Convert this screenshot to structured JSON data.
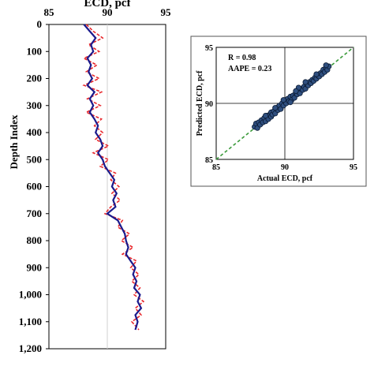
{
  "chart_data": [
    {
      "type": "line",
      "title": "ECD, pcf",
      "xlabel": "ECD, pcf",
      "ylabel": "Depth Index",
      "xlim": [
        85,
        95
      ],
      "ylim": [
        0,
        1200
      ],
      "y_inverted": true,
      "x_axis_position": "top",
      "x_ticks": [
        "85",
        "90",
        "95"
      ],
      "y_ticks": [
        "0",
        "100",
        "200",
        "300",
        "400",
        "500",
        "600",
        "700",
        "800",
        "900",
        "1,000",
        "1,100",
        "1,200"
      ],
      "y_tick_values": [
        0,
        100,
        200,
        300,
        400,
        500,
        600,
        700,
        800,
        900,
        1000,
        1100,
        1200
      ],
      "grid": "vertical-only",
      "legend": "none",
      "depth": [
        0,
        25,
        50,
        75,
        100,
        125,
        150,
        175,
        200,
        225,
        250,
        275,
        300,
        325,
        350,
        375,
        400,
        425,
        450,
        475,
        500,
        525,
        550,
        575,
        600,
        625,
        650,
        675,
        700,
        725,
        750,
        775,
        800,
        825,
        850,
        875,
        900,
        925,
        950,
        975,
        1000,
        1025,
        1050,
        1075,
        1100,
        1130
      ],
      "series": [
        {
          "values": [
            88.0,
            88.5,
            89.0,
            88.6,
            88.8,
            88.3,
            88.6,
            88.4,
            88.7,
            88.3,
            88.9,
            88.5,
            88.8,
            88.5,
            88.9,
            89.2,
            89.0,
            89.4,
            89.6,
            89.2,
            89.6,
            89.8,
            90.2,
            90.6,
            90.4,
            90.8,
            90.5,
            90.7,
            90.0,
            90.9,
            91.2,
            91.5,
            91.6,
            91.8,
            91.6,
            92.0,
            92.4,
            92.2,
            92.5,
            92.3,
            92.8,
            92.6,
            92.9,
            92.4,
            92.6,
            92.4
          ],
          "color": "#1a1a8c",
          "style": "solid"
        },
        {
          "values": [
            88.2,
            88.8,
            89.6,
            88.4,
            89.3,
            88.0,
            89.1,
            88.2,
            89.3,
            88.0,
            89.5,
            88.3,
            89.4,
            88.2,
            89.5,
            88.9,
            89.6,
            89.0,
            90.1,
            88.8,
            90.1,
            89.4,
            90.7,
            90.3,
            91.0,
            90.4,
            91.1,
            90.3,
            89.8,
            91.3,
            90.9,
            91.9,
            91.2,
            92.2,
            91.3,
            92.5,
            92.0,
            92.7,
            92.1,
            92.8,
            92.3,
            93.1,
            92.4,
            92.9,
            92.1,
            92.7
          ],
          "color": "#e8262a",
          "style": "dashed"
        }
      ]
    },
    {
      "type": "scatter",
      "xlabel": "Actual ECD, pcf",
      "ylabel": "Predicted  ECD, pcf",
      "xlim": [
        85,
        95
      ],
      "ylim": [
        85,
        95
      ],
      "x_ticks": [
        "85",
        "90",
        "95"
      ],
      "y_ticks": [
        "85",
        "90",
        "95"
      ],
      "grid": "major",
      "legend": "none",
      "annotations": [
        "R = 0.98",
        "AAPE =  0.23"
      ],
      "reference_line": {
        "from": [
          85,
          85
        ],
        "to": [
          95,
          95
        ],
        "color": "#3a9a3a",
        "style": "dashed"
      },
      "point_color": "#2f4f7f",
      "points": [
        [
          87.8,
          87.9
        ],
        [
          87.9,
          88.2
        ],
        [
          88.0,
          87.8
        ],
        [
          88.1,
          88.3
        ],
        [
          88.2,
          88.1
        ],
        [
          88.3,
          88.5
        ],
        [
          88.4,
          88.3
        ],
        [
          88.5,
          88.7
        ],
        [
          88.6,
          88.4
        ],
        [
          88.7,
          88.9
        ],
        [
          88.8,
          88.6
        ],
        [
          88.9,
          89.0
        ],
        [
          89.0,
          88.8
        ],
        [
          89.0,
          89.2
        ],
        [
          89.1,
          89.0
        ],
        [
          89.2,
          89.3
        ],
        [
          89.3,
          89.1
        ],
        [
          89.4,
          89.6
        ],
        [
          89.5,
          89.4
        ],
        [
          89.6,
          89.8
        ],
        [
          89.7,
          89.5
        ],
        [
          89.8,
          90.0
        ],
        [
          89.9,
          89.8
        ],
        [
          90.0,
          90.2
        ],
        [
          90.1,
          90.0
        ],
        [
          90.2,
          90.4
        ],
        [
          90.3,
          90.2
        ],
        [
          90.4,
          90.6
        ],
        [
          90.5,
          90.3
        ],
        [
          90.6,
          90.7
        ],
        [
          90.7,
          90.5
        ],
        [
          90.8,
          90.9
        ],
        [
          90.9,
          90.8
        ],
        [
          91.0,
          91.1
        ],
        [
          91.1,
          90.9
        ],
        [
          91.2,
          91.3
        ],
        [
          91.3,
          91.2
        ],
        [
          91.4,
          91.5
        ],
        [
          91.5,
          91.3
        ],
        [
          91.6,
          91.7
        ],
        [
          91.7,
          91.6
        ],
        [
          91.8,
          91.9
        ],
        [
          91.9,
          91.8
        ],
        [
          92.0,
          92.1
        ],
        [
          92.1,
          92.0
        ],
        [
          92.2,
          92.3
        ],
        [
          92.3,
          92.2
        ],
        [
          92.4,
          92.5
        ],
        [
          92.5,
          92.4
        ],
        [
          92.6,
          92.7
        ],
        [
          92.7,
          92.6
        ],
        [
          92.8,
          93.0
        ],
        [
          92.9,
          92.8
        ],
        [
          93.0,
          93.2
        ],
        [
          93.1,
          93.0
        ],
        [
          93.2,
          93.3
        ],
        [
          89.3,
          89.6
        ],
        [
          90.4,
          90.1
        ],
        [
          91.0,
          91.4
        ],
        [
          88.6,
          88.9
        ],
        [
          89.9,
          90.3
        ],
        [
          90.8,
          91.1
        ],
        [
          91.5,
          91.9
        ],
        [
          92.3,
          92.6
        ],
        [
          93.0,
          93.4
        ]
      ]
    }
  ]
}
